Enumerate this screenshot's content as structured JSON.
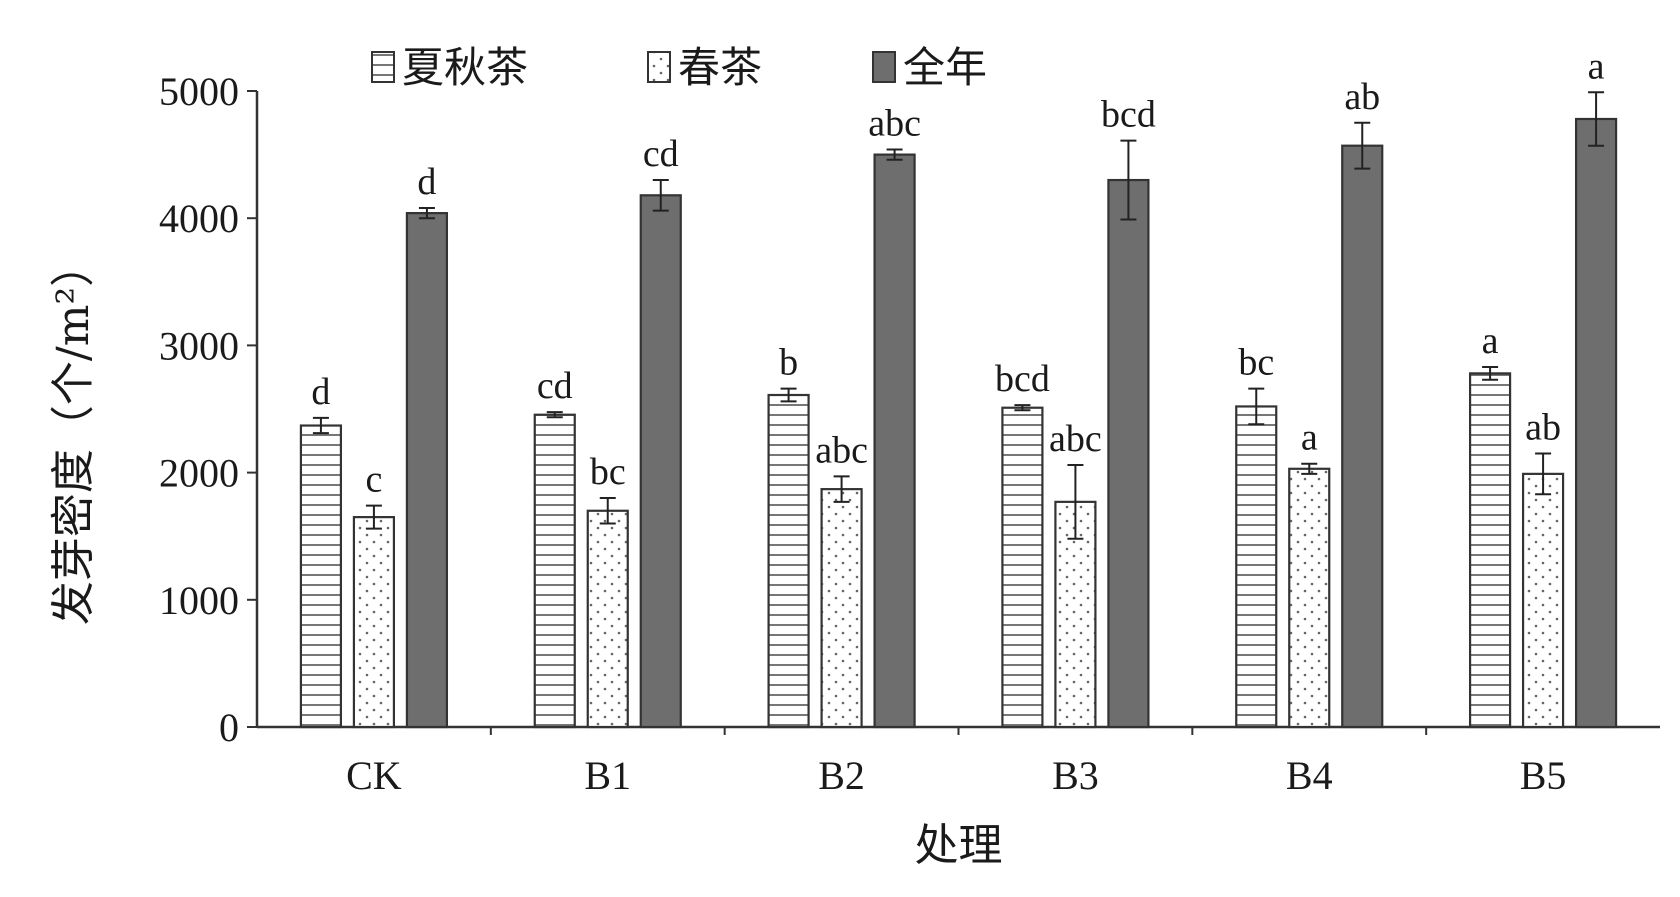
{
  "chart_data": {
    "type": "bar",
    "title": "",
    "xlabel": "处理",
    "ylabel": "发芽密度（个/m²）",
    "ylim": [
      0,
      5000
    ],
    "yticks": [
      0,
      1000,
      2000,
      3000,
      4000,
      5000
    ],
    "categories": [
      "CK",
      "B1",
      "B2",
      "B3",
      "B4",
      "B5"
    ],
    "legend_position": "top",
    "series": [
      {
        "name": "夏秋茶",
        "pattern": "horizontal-stripes",
        "color": "#ffffff",
        "values": [
          2370,
          2455,
          2610,
          2510,
          2520,
          2780
        ],
        "errors": [
          60,
          20,
          50,
          20,
          140,
          50
        ],
        "labels": [
          "d",
          "cd",
          "b",
          "bcd",
          "bc",
          "a"
        ]
      },
      {
        "name": "春茶",
        "pattern": "dots",
        "color": "#ffffff",
        "values": [
          1650,
          1700,
          1870,
          1770,
          2030,
          1990
        ],
        "errors": [
          90,
          100,
          100,
          290,
          40,
          160
        ],
        "labels": [
          "c",
          "bc",
          "abc",
          "abc",
          "a",
          "ab"
        ]
      },
      {
        "name": "全年",
        "pattern": "solid",
        "color": "#6e6e6e",
        "values": [
          4040,
          4180,
          4500,
          4300,
          4570,
          4780
        ],
        "errors": [
          40,
          120,
          40,
          310,
          180,
          210
        ],
        "labels": [
          "d",
          "cd",
          "abc",
          "bcd",
          "ab",
          "a"
        ]
      }
    ]
  }
}
